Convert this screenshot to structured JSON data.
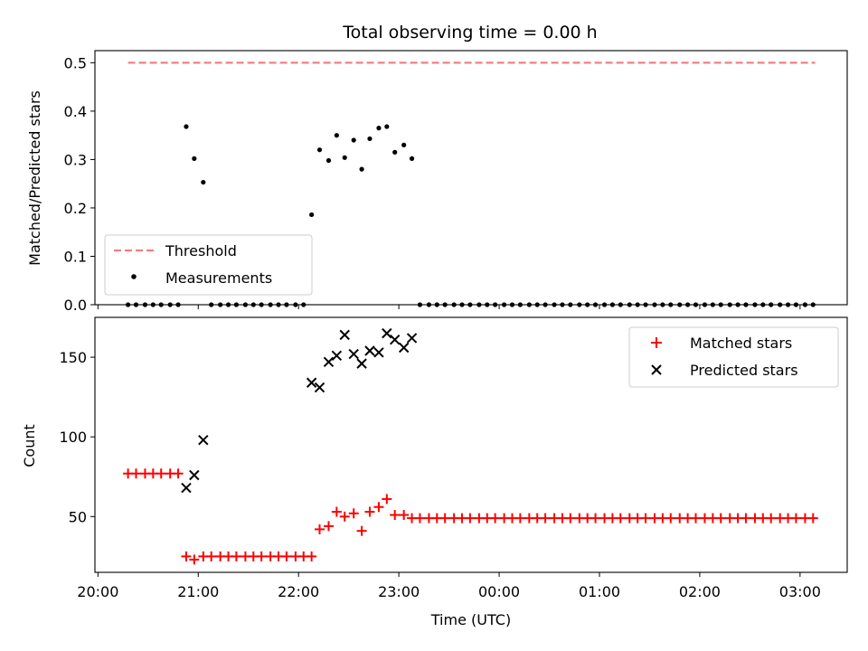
{
  "figure": {
    "title": "Total observing time = 0.00 h",
    "xlabel": "Time (UTC)",
    "x_tick_labels": [
      "20:00",
      "21:00",
      "22:00",
      "23:00",
      "00:00",
      "01:00",
      "02:00",
      "03:00"
    ],
    "x_tick_values": [
      20,
      21,
      22,
      23,
      24,
      25,
      26,
      27
    ]
  },
  "chart_data": [
    {
      "type": "scatter",
      "panel": "top",
      "ylabel": "Matched/Predicted stars",
      "ylim": [
        0,
        0.525
      ],
      "xlim": [
        19.97,
        27.47
      ],
      "y_ticks": [
        0.0,
        0.1,
        0.2,
        0.3,
        0.4,
        0.5
      ],
      "y_tick_labels": [
        "0.0",
        "0.1",
        "0.2",
        "0.3",
        "0.4",
        "0.5"
      ],
      "legend_position": "lower-left",
      "threshold": {
        "name": "Threshold",
        "value": 0.5,
        "x_start": 20.3,
        "x_end": 27.15,
        "color": "#f08080"
      },
      "series": [
        {
          "name": "Measurements",
          "color": "#000000",
          "points": [
            [
              20.3,
              0
            ],
            [
              20.38,
              0
            ],
            [
              20.47,
              0
            ],
            [
              20.55,
              0
            ],
            [
              20.63,
              0
            ],
            [
              20.72,
              0
            ],
            [
              20.8,
              0
            ],
            [
              20.88,
              0.368
            ],
            [
              20.96,
              0.302
            ],
            [
              21.05,
              0.253
            ],
            [
              21.13,
              0
            ],
            [
              21.22,
              0
            ],
            [
              21.3,
              0
            ],
            [
              21.38,
              0
            ],
            [
              21.47,
              0
            ],
            [
              21.55,
              0
            ],
            [
              21.63,
              0
            ],
            [
              21.72,
              0
            ],
            [
              21.8,
              0
            ],
            [
              21.88,
              0
            ],
            [
              21.97,
              0
            ],
            [
              22.05,
              0
            ],
            [
              22.13,
              0.186
            ],
            [
              22.21,
              0.32
            ],
            [
              22.3,
              0.298
            ],
            [
              22.38,
              0.35
            ],
            [
              22.46,
              0.304
            ],
            [
              22.55,
              0.34
            ],
            [
              22.63,
              0.28
            ],
            [
              22.71,
              0.343
            ],
            [
              22.8,
              0.365
            ],
            [
              22.88,
              0.368
            ],
            [
              22.96,
              0.315
            ],
            [
              23.05,
              0.33
            ],
            [
              23.13,
              0.302
            ],
            [
              23.21,
              0
            ],
            [
              23.3,
              0
            ],
            [
              23.38,
              0
            ],
            [
              23.46,
              0
            ],
            [
              23.55,
              0
            ],
            [
              23.63,
              0
            ],
            [
              23.71,
              0
            ],
            [
              23.8,
              0
            ],
            [
              23.88,
              0
            ],
            [
              23.96,
              0
            ],
            [
              24.05,
              0
            ],
            [
              24.13,
              0
            ],
            [
              24.21,
              0
            ],
            [
              24.3,
              0
            ],
            [
              24.38,
              0
            ],
            [
              24.46,
              0
            ],
            [
              24.55,
              0
            ],
            [
              24.63,
              0
            ],
            [
              24.71,
              0
            ],
            [
              24.8,
              0
            ],
            [
              24.88,
              0
            ],
            [
              24.96,
              0
            ],
            [
              25.05,
              0
            ],
            [
              25.13,
              0
            ],
            [
              25.21,
              0
            ],
            [
              25.3,
              0
            ],
            [
              25.38,
              0
            ],
            [
              25.46,
              0
            ],
            [
              25.55,
              0
            ],
            [
              25.63,
              0
            ],
            [
              25.71,
              0
            ],
            [
              25.8,
              0
            ],
            [
              25.88,
              0
            ],
            [
              25.96,
              0
            ],
            [
              26.05,
              0
            ],
            [
              26.13,
              0
            ],
            [
              26.21,
              0
            ],
            [
              26.3,
              0
            ],
            [
              26.38,
              0
            ],
            [
              26.46,
              0
            ],
            [
              26.55,
              0
            ],
            [
              26.63,
              0
            ],
            [
              26.71,
              0
            ],
            [
              26.8,
              0
            ],
            [
              26.88,
              0
            ],
            [
              26.96,
              0
            ],
            [
              27.05,
              0
            ],
            [
              27.13,
              0
            ]
          ]
        }
      ]
    },
    {
      "type": "scatter",
      "panel": "bottom",
      "ylabel": "Count",
      "ylim": [
        15,
        175
      ],
      "xlim": [
        19.97,
        27.47
      ],
      "y_ticks": [
        50,
        100,
        150
      ],
      "y_tick_labels": [
        "50",
        "100",
        "150"
      ],
      "legend_position": "upper-right",
      "series": [
        {
          "name": "Matched stars",
          "marker": "plus",
          "color": "#ff0000",
          "points": [
            [
              20.3,
              77
            ],
            [
              20.38,
              77
            ],
            [
              20.47,
              77
            ],
            [
              20.55,
              77
            ],
            [
              20.63,
              77
            ],
            [
              20.72,
              77
            ],
            [
              20.8,
              77
            ],
            [
              20.88,
              25
            ],
            [
              20.96,
              23
            ],
            [
              21.05,
              25
            ],
            [
              21.13,
              25
            ],
            [
              21.22,
              25
            ],
            [
              21.3,
              25
            ],
            [
              21.38,
              25
            ],
            [
              21.47,
              25
            ],
            [
              21.55,
              25
            ],
            [
              21.63,
              25
            ],
            [
              21.72,
              25
            ],
            [
              21.8,
              25
            ],
            [
              21.88,
              25
            ],
            [
              21.97,
              25
            ],
            [
              22.05,
              25
            ],
            [
              22.13,
              25
            ],
            [
              22.21,
              42
            ],
            [
              22.3,
              44
            ],
            [
              22.38,
              53
            ],
            [
              22.46,
              50
            ],
            [
              22.55,
              52
            ],
            [
              22.63,
              41
            ],
            [
              22.71,
              53
            ],
            [
              22.8,
              56
            ],
            [
              22.88,
              61
            ],
            [
              22.96,
              51
            ],
            [
              23.05,
              51
            ],
            [
              23.13,
              49
            ],
            [
              23.21,
              49
            ],
            [
              23.3,
              49
            ],
            [
              23.38,
              49
            ],
            [
              23.46,
              49
            ],
            [
              23.55,
              49
            ],
            [
              23.63,
              49
            ],
            [
              23.71,
              49
            ],
            [
              23.8,
              49
            ],
            [
              23.88,
              49
            ],
            [
              23.96,
              49
            ],
            [
              24.05,
              49
            ],
            [
              24.13,
              49
            ],
            [
              24.21,
              49
            ],
            [
              24.3,
              49
            ],
            [
              24.38,
              49
            ],
            [
              24.46,
              49
            ],
            [
              24.55,
              49
            ],
            [
              24.63,
              49
            ],
            [
              24.71,
              49
            ],
            [
              24.8,
              49
            ],
            [
              24.88,
              49
            ],
            [
              24.96,
              49
            ],
            [
              25.05,
              49
            ],
            [
              25.13,
              49
            ],
            [
              25.21,
              49
            ],
            [
              25.3,
              49
            ],
            [
              25.38,
              49
            ],
            [
              25.46,
              49
            ],
            [
              25.55,
              49
            ],
            [
              25.63,
              49
            ],
            [
              25.71,
              49
            ],
            [
              25.8,
              49
            ],
            [
              25.88,
              49
            ],
            [
              25.96,
              49
            ],
            [
              26.05,
              49
            ],
            [
              26.13,
              49
            ],
            [
              26.21,
              49
            ],
            [
              26.3,
              49
            ],
            [
              26.38,
              49
            ],
            [
              26.46,
              49
            ],
            [
              26.55,
              49
            ],
            [
              26.63,
              49
            ],
            [
              26.71,
              49
            ],
            [
              26.8,
              49
            ],
            [
              26.88,
              49
            ],
            [
              26.96,
              49
            ],
            [
              27.05,
              49
            ],
            [
              27.13,
              49
            ]
          ]
        },
        {
          "name": "Predicted stars",
          "marker": "x",
          "color": "#000000",
          "points": [
            [
              20.88,
              68
            ],
            [
              20.96,
              76
            ],
            [
              21.05,
              98
            ],
            [
              22.13,
              134
            ],
            [
              22.21,
              131
            ],
            [
              22.3,
              147
            ],
            [
              22.38,
              151
            ],
            [
              22.46,
              164
            ],
            [
              22.55,
              152
            ],
            [
              22.63,
              146
            ],
            [
              22.71,
              154
            ],
            [
              22.8,
              153
            ],
            [
              22.88,
              165
            ],
            [
              22.96,
              161
            ],
            [
              23.05,
              156
            ],
            [
              23.13,
              162
            ]
          ]
        }
      ]
    }
  ]
}
